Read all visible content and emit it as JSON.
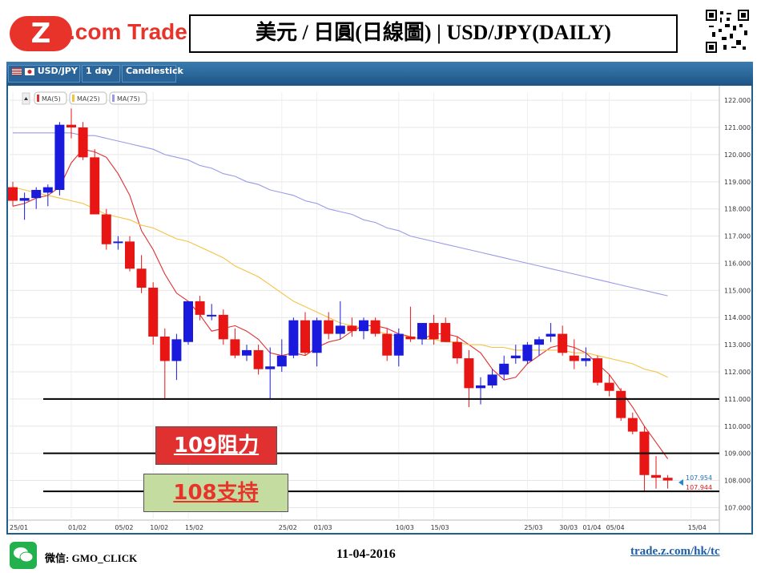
{
  "header": {
    "logo_z": "Z",
    "logo_text": ".com Trade",
    "title": "美元 / 日圓(日線圖) | USD/JPY(DAILY)"
  },
  "toolbar": {
    "symbol": "USD/JPY",
    "interval": "1 day",
    "chart_type": "Candlestick"
  },
  "legend": [
    {
      "label": "MA(5)",
      "color": "#e03030"
    },
    {
      "label": "MA(25)",
      "color": "#f5c242"
    },
    {
      "label": "MA(75)",
      "color": "#9a9ae8"
    }
  ],
  "price_tags": {
    "ask": "107.954",
    "bid": "107.944"
  },
  "annotations": {
    "resistance": "109阻力",
    "support": "108支持"
  },
  "footer": {
    "wechat": "微信: GMO_CLICK",
    "date": "11-04-2016",
    "url": "trade.z.com/hk/tc"
  },
  "colors": {
    "bull": "#1a1adc",
    "bear": "#e81515",
    "ma5": "#e03030",
    "ma25": "#f5c242",
    "ma75": "#9a9ae8",
    "brand": "#e8332a"
  },
  "chart_data": {
    "type": "candlestick",
    "title": "美元 / 日圓(日線圖) | USD/JPY(DAILY)",
    "ylim": [
      106.6,
      122.3
    ],
    "y_ticks": [
      "122.000",
      "121.000",
      "120.000",
      "119.000",
      "118.000",
      "117.000",
      "116.000",
      "115.000",
      "114.000",
      "113.000",
      "112.000",
      "111.000",
      "110.000",
      "109.000",
      "108.000",
      "107.000"
    ],
    "x_ticks": [
      {
        "label": "25/01",
        "index": 0
      },
      {
        "label": "01/02",
        "index": 5
      },
      {
        "label": "05/02",
        "index": 9
      },
      {
        "label": "10/02",
        "index": 12
      },
      {
        "label": "15/02",
        "index": 15
      },
      {
        "label": "25/02",
        "index": 23
      },
      {
        "label": "01/03",
        "index": 26
      },
      {
        "label": "10/03",
        "index": 33
      },
      {
        "label": "15/03",
        "index": 36
      },
      {
        "label": "25/03",
        "index": 44
      },
      {
        "label": "30/03",
        "index": 47
      },
      {
        "label": "01/04",
        "index": 49
      },
      {
        "label": "05/04",
        "index": 51
      },
      {
        "label": "15/04",
        "index": 58
      }
    ],
    "candles": [
      {
        "o": 118.8,
        "h": 119.0,
        "l": 118.1,
        "c": 118.3
      },
      {
        "o": 118.3,
        "h": 118.6,
        "l": 117.6,
        "c": 118.4
      },
      {
        "o": 118.4,
        "h": 118.8,
        "l": 118.0,
        "c": 118.7
      },
      {
        "o": 118.6,
        "h": 118.9,
        "l": 118.1,
        "c": 118.8
      },
      {
        "o": 118.7,
        "h": 121.2,
        "l": 118.5,
        "c": 121.1
      },
      {
        "o": 121.1,
        "h": 121.7,
        "l": 120.6,
        "c": 121.0
      },
      {
        "o": 121.0,
        "h": 121.2,
        "l": 119.8,
        "c": 119.9
      },
      {
        "o": 119.9,
        "h": 120.2,
        "l": 117.8,
        "c": 117.8
      },
      {
        "o": 117.8,
        "h": 118.0,
        "l": 116.5,
        "c": 116.7
      },
      {
        "o": 116.8,
        "h": 117.0,
        "l": 116.5,
        "c": 116.8
      },
      {
        "o": 116.8,
        "h": 117.0,
        "l": 115.7,
        "c": 115.8
      },
      {
        "o": 115.8,
        "h": 116.3,
        "l": 114.9,
        "c": 115.1
      },
      {
        "o": 115.1,
        "h": 115.3,
        "l": 113.0,
        "c": 113.3
      },
      {
        "o": 113.3,
        "h": 113.6,
        "l": 111.0,
        "c": 112.4
      },
      {
        "o": 112.4,
        "h": 113.4,
        "l": 111.7,
        "c": 113.2
      },
      {
        "o": 113.1,
        "h": 114.6,
        "l": 113.0,
        "c": 114.6
      },
      {
        "o": 114.6,
        "h": 114.8,
        "l": 113.9,
        "c": 114.1
      },
      {
        "o": 114.1,
        "h": 114.5,
        "l": 113.9,
        "c": 114.1
      },
      {
        "o": 114.1,
        "h": 114.3,
        "l": 113.0,
        "c": 113.2
      },
      {
        "o": 113.2,
        "h": 113.6,
        "l": 112.5,
        "c": 112.6
      },
      {
        "o": 112.6,
        "h": 113.0,
        "l": 112.4,
        "c": 112.8
      },
      {
        "o": 112.8,
        "h": 113.0,
        "l": 111.9,
        "c": 112.1
      },
      {
        "o": 112.1,
        "h": 112.9,
        "l": 111.0,
        "c": 112.2
      },
      {
        "o": 112.2,
        "h": 113.2,
        "l": 112.0,
        "c": 112.6
      },
      {
        "o": 112.6,
        "h": 114.0,
        "l": 112.5,
        "c": 113.9
      },
      {
        "o": 113.9,
        "h": 114.2,
        "l": 112.6,
        "c": 112.7
      },
      {
        "o": 112.7,
        "h": 114.0,
        "l": 112.2,
        "c": 113.9
      },
      {
        "o": 113.9,
        "h": 114.2,
        "l": 113.2,
        "c": 113.4
      },
      {
        "o": 113.4,
        "h": 114.6,
        "l": 113.2,
        "c": 113.7
      },
      {
        "o": 113.7,
        "h": 114.0,
        "l": 113.3,
        "c": 113.5
      },
      {
        "o": 113.5,
        "h": 114.0,
        "l": 113.2,
        "c": 113.9
      },
      {
        "o": 113.9,
        "h": 114.0,
        "l": 113.3,
        "c": 113.4
      },
      {
        "o": 113.4,
        "h": 113.6,
        "l": 112.4,
        "c": 112.6
      },
      {
        "o": 112.6,
        "h": 113.6,
        "l": 112.2,
        "c": 113.4
      },
      {
        "o": 113.3,
        "h": 114.4,
        "l": 113.1,
        "c": 113.2
      },
      {
        "o": 113.2,
        "h": 113.8,
        "l": 113.0,
        "c": 113.8
      },
      {
        "o": 113.8,
        "h": 114.1,
        "l": 113.0,
        "c": 113.2
      },
      {
        "o": 113.8,
        "h": 114.0,
        "l": 113.1,
        "c": 113.1
      },
      {
        "o": 113.1,
        "h": 113.3,
        "l": 112.3,
        "c": 112.5
      },
      {
        "o": 112.5,
        "h": 112.8,
        "l": 110.7,
        "c": 111.4
      },
      {
        "o": 111.4,
        "h": 111.8,
        "l": 110.8,
        "c": 111.5
      },
      {
        "o": 111.5,
        "h": 112.1,
        "l": 111.4,
        "c": 111.9
      },
      {
        "o": 111.9,
        "h": 112.6,
        "l": 111.7,
        "c": 112.3
      },
      {
        "o": 112.5,
        "h": 113.0,
        "l": 112.3,
        "c": 112.6
      },
      {
        "o": 112.4,
        "h": 113.1,
        "l": 112.3,
        "c": 113.0
      },
      {
        "o": 113.0,
        "h": 113.3,
        "l": 112.6,
        "c": 113.2
      },
      {
        "o": 113.3,
        "h": 113.8,
        "l": 113.1,
        "c": 113.4
      },
      {
        "o": 113.4,
        "h": 113.7,
        "l": 112.6,
        "c": 112.7
      },
      {
        "o": 112.6,
        "h": 113.2,
        "l": 112.1,
        "c": 112.4
      },
      {
        "o": 112.4,
        "h": 112.9,
        "l": 112.2,
        "c": 112.5
      },
      {
        "o": 112.5,
        "h": 112.6,
        "l": 111.5,
        "c": 111.6
      },
      {
        "o": 111.6,
        "h": 111.9,
        "l": 111.1,
        "c": 111.3
      },
      {
        "o": 111.3,
        "h": 111.4,
        "l": 110.2,
        "c": 110.3
      },
      {
        "o": 110.3,
        "h": 110.5,
        "l": 109.7,
        "c": 109.8
      },
      {
        "o": 109.8,
        "h": 110.0,
        "l": 107.6,
        "c": 108.2
      },
      {
        "o": 108.2,
        "h": 108.9,
        "l": 107.7,
        "c": 108.1
      },
      {
        "o": 108.1,
        "h": 108.2,
        "l": 107.7,
        "c": 108.0
      }
    ],
    "series": [
      {
        "name": "MA(5)",
        "values": [
          118.1,
          118.2,
          118.4,
          118.5,
          118.8,
          119.7,
          120.2,
          120.1,
          119.9,
          119.3,
          118.5,
          117.2,
          116.5,
          115.6,
          114.9,
          114.6,
          114.1,
          113.5,
          113.6,
          113.7,
          113.5,
          113.2,
          112.7,
          112.6,
          112.7,
          112.6,
          112.9,
          113.1,
          113.2,
          113.5,
          113.7,
          113.7,
          113.6,
          113.4,
          113.3,
          113.2,
          113.4,
          113.4,
          113.3,
          113.0,
          112.7,
          112.1,
          111.7,
          111.8,
          112.3,
          112.6,
          112.9,
          113.0,
          112.9,
          112.7,
          112.3,
          111.9,
          111.3,
          110.7,
          110.0,
          109.4,
          108.8
        ]
      },
      {
        "name": "MA(25)",
        "values": [
          118.8,
          118.7,
          118.6,
          118.5,
          118.4,
          118.3,
          118.2,
          118.0,
          117.8,
          117.7,
          117.6,
          117.4,
          117.3,
          117.1,
          116.9,
          116.8,
          116.6,
          116.4,
          116.2,
          115.9,
          115.7,
          115.5,
          115.2,
          114.9,
          114.6,
          114.4,
          114.2,
          114.0,
          113.8,
          113.7,
          113.6,
          113.5,
          113.4,
          113.3,
          113.3,
          113.2,
          113.2,
          113.1,
          113.1,
          113.0,
          113.0,
          112.9,
          112.9,
          112.8,
          112.8,
          112.8,
          112.8,
          112.8,
          112.7,
          112.7,
          112.6,
          112.5,
          112.4,
          112.3,
          112.1,
          112.0,
          111.8
        ]
      },
      {
        "name": "MA(75)",
        "values": [
          120.8,
          120.8,
          120.8,
          120.8,
          120.8,
          120.8,
          120.7,
          120.7,
          120.6,
          120.5,
          120.4,
          120.3,
          120.2,
          120.0,
          119.9,
          119.8,
          119.6,
          119.5,
          119.3,
          119.2,
          119.0,
          118.9,
          118.7,
          118.6,
          118.5,
          118.3,
          118.2,
          118.0,
          117.9,
          117.8,
          117.6,
          117.5,
          117.3,
          117.2,
          117.0,
          116.9,
          116.8,
          116.7,
          116.6,
          116.5,
          116.4,
          116.3,
          116.2,
          116.1,
          116.0,
          115.9,
          115.8,
          115.7,
          115.6,
          115.5,
          115.4,
          115.3,
          115.2,
          115.1,
          115.0,
          114.9,
          114.8
        ]
      }
    ],
    "horizontal_lines": [
      111.0,
      109.0,
      107.6
    ]
  }
}
